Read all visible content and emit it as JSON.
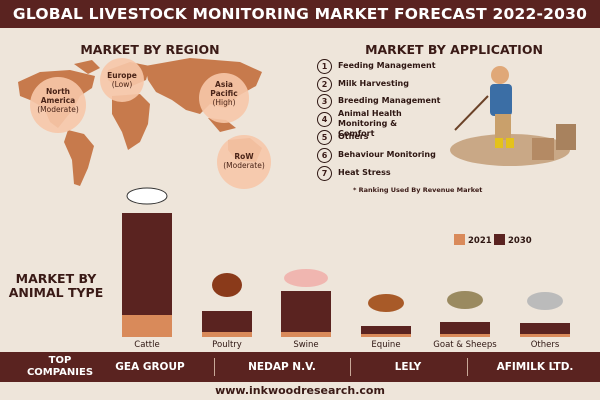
{
  "header": {
    "title": "GLOBAL LIVESTOCK MONITORING MARKET FORECAST 2022-2030"
  },
  "region": {
    "title": "MARKET BY REGION",
    "regions": [
      {
        "name": "North America",
        "level": "(Moderate)"
      },
      {
        "name": "Europe",
        "level": "(Low)"
      },
      {
        "name": "Asia Pacific",
        "level": "(High)"
      },
      {
        "name": "RoW",
        "level": "(Moderate)"
      }
    ]
  },
  "application": {
    "title": "MARKET BY APPLICATION",
    "items": [
      {
        "rank": 1,
        "label": "Feeding Management"
      },
      {
        "rank": 2,
        "label": "Milk Harvesting"
      },
      {
        "rank": 3,
        "label": "Breeding Management"
      },
      {
        "rank": 4,
        "label": "Animal Health Monitoring & Comfort"
      },
      {
        "rank": 5,
        "label": "Others"
      },
      {
        "rank": 6,
        "label": "Behaviour Monitoring"
      },
      {
        "rank": 7,
        "label": "Heat Stress"
      }
    ],
    "note": "* Ranking Used By Revenue Market"
  },
  "chart_data": {
    "type": "bar",
    "title": "MARKET BY ANIMAL TYPE",
    "categories": [
      "Cattle",
      "Poultry",
      "Swine",
      "Equine",
      "Goat & Sheeps",
      "Others"
    ],
    "series": [
      {
        "name": "2021",
        "color": "#d98a5a",
        "values": [
          22,
          5,
          5,
          3,
          3,
          3
        ]
      },
      {
        "name": "2030",
        "color": "#5a2320",
        "values": [
          124,
          26,
          46,
          11,
          15,
          14
        ]
      }
    ],
    "ylim": [
      0,
      130
    ]
  },
  "companies": {
    "title": "TOP COMPANIES",
    "names": [
      "GEA GROUP",
      "NEDAP N.V.",
      "LELY",
      "AFIMILK LTD."
    ]
  },
  "footer": {
    "url": "www.inkwoodresearch.com"
  }
}
